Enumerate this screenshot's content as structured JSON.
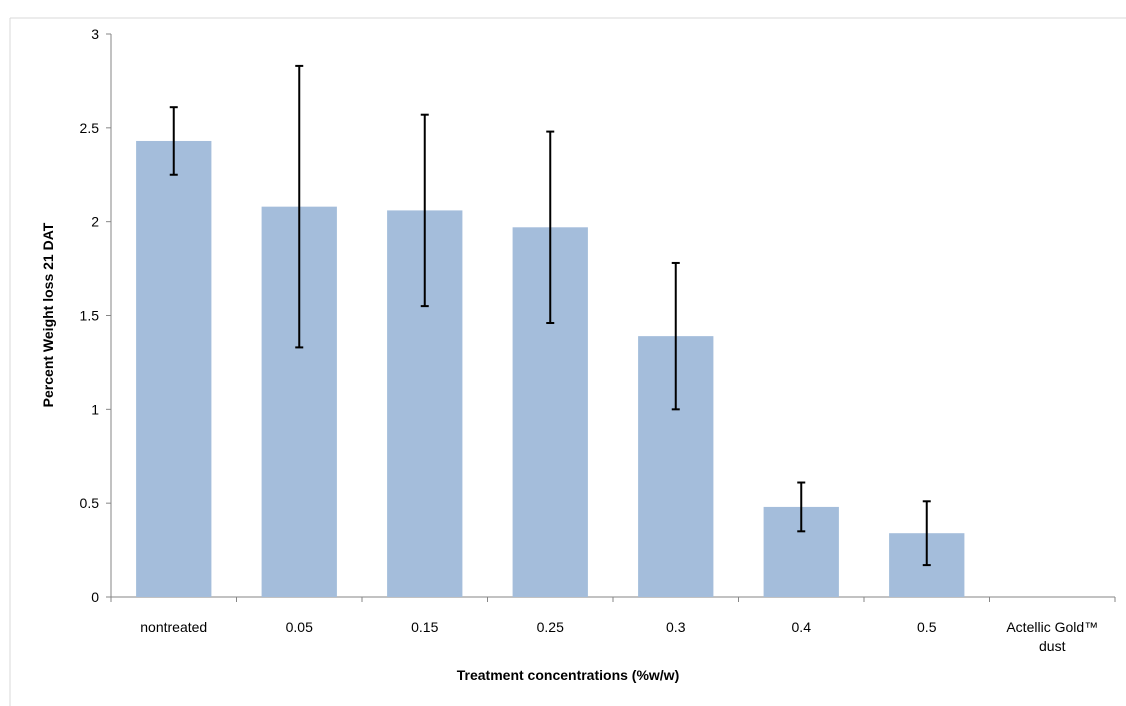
{
  "chart_data": {
    "type": "bar",
    "title": "",
    "xlabel": "Treatment concentrations (%w/w)",
    "ylabel": "Percent Weight loss  21 DAT",
    "ylim": [
      0,
      3
    ],
    "yticks": [
      0,
      0.5,
      1,
      1.5,
      2,
      2.5,
      3
    ],
    "ytick_labels": [
      "0",
      "0.5",
      "1",
      "1.5",
      "2",
      "2.5",
      "3"
    ],
    "grid": false,
    "legend": "none",
    "categories": [
      "nontreated",
      "0.05",
      "0.15",
      "0.25",
      "0.3",
      "0.4",
      "0.5",
      "Actellic Gold™ dust"
    ],
    "category_lines": [
      [
        "nontreated"
      ],
      [
        "0.05"
      ],
      [
        "0.15"
      ],
      [
        "0.25"
      ],
      [
        "0.3"
      ],
      [
        "0.4"
      ],
      [
        "0.5"
      ],
      [
        "Actellic Gold™",
        "dust"
      ]
    ],
    "values": [
      2.43,
      2.08,
      2.06,
      1.97,
      1.39,
      0.48,
      0.34,
      0
    ],
    "error": [
      0.18,
      0.75,
      0.51,
      0.51,
      0.39,
      0.13,
      0.17,
      0
    ],
    "colors": {
      "bar": "#a4bddb",
      "error_bar": "#000000",
      "axis": "#868686",
      "text": "#000000"
    }
  }
}
